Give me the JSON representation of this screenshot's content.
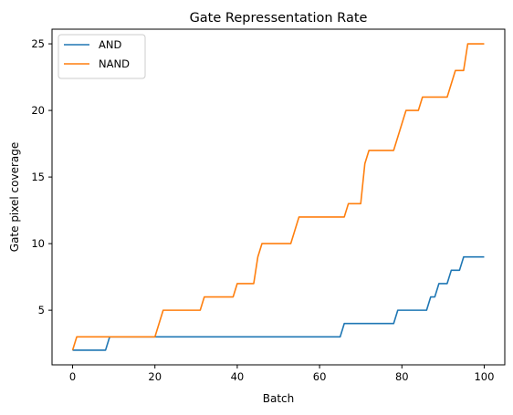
{
  "chart_data": {
    "type": "line",
    "title": "Gate Repressentation Rate",
    "xlabel": "Batch",
    "ylabel": "Gate pixel coverage",
    "xlim": [
      -5,
      105
    ],
    "ylim": [
      0.9,
      26.1
    ],
    "xticks": [
      0,
      20,
      40,
      60,
      80,
      100
    ],
    "yticks": [
      5,
      10,
      15,
      20,
      25
    ],
    "grid": false,
    "legend_position": "top-left",
    "series": [
      {
        "name": "AND",
        "color": "#1f77b4",
        "x": [
          0,
          8,
          9,
          65,
          66,
          78,
          79,
          86,
          87,
          88,
          89,
          91,
          92,
          94,
          95,
          100
        ],
        "y": [
          2,
          2,
          3,
          3,
          4,
          4,
          5,
          5,
          6,
          6,
          7,
          7,
          8,
          8,
          9,
          9
        ]
      },
      {
        "name": "NAND",
        "color": "#ff7f0e",
        "x": [
          0,
          1,
          20,
          22,
          31,
          32,
          39,
          40,
          44,
          45,
          46,
          53,
          55,
          66,
          67,
          70,
          71,
          72,
          78,
          81,
          83,
          84,
          85,
          91,
          93,
          95,
          96,
          100
        ],
        "y": [
          2,
          3,
          3,
          5,
          5,
          6,
          6,
          7,
          7,
          9,
          10,
          10,
          12,
          12,
          13,
          13,
          16,
          17,
          17,
          20,
          20,
          20,
          21,
          21,
          23,
          23,
          25,
          25
        ]
      }
    ]
  }
}
